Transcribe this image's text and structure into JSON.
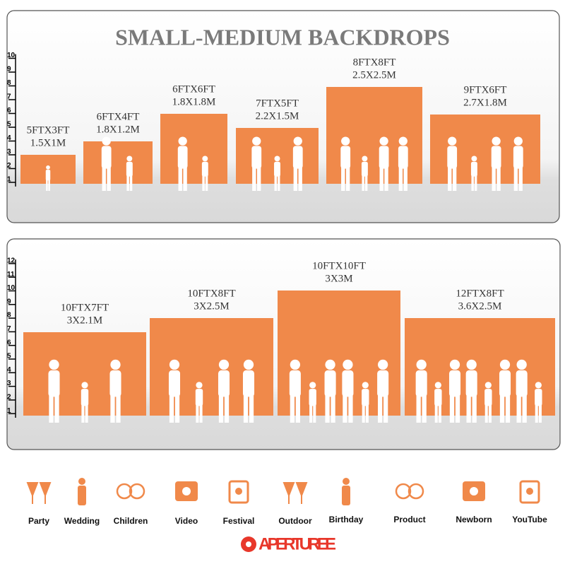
{
  "title": "SMALL-MEDIUM BACKDROPS",
  "panels": [
    {
      "ruler": [
        1,
        2,
        3,
        4,
        5,
        6,
        7,
        8,
        9,
        10
      ],
      "backdrops": [
        {
          "size_ft": "5FTX3FT",
          "size_m": "1.5X1M"
        },
        {
          "size_ft": "6FTX4FT",
          "size_m": "1.8X1.2M"
        },
        {
          "size_ft": "6FTX6FT",
          "size_m": "1.8X1.8M"
        },
        {
          "size_ft": "7FTX5FT",
          "size_m": "2.2X1.5M"
        },
        {
          "size_ft": "8FTX8FT",
          "size_m": "2.5X2.5M"
        },
        {
          "size_ft": "9FTX6FT",
          "size_m": "2.7X1.8M"
        }
      ]
    },
    {
      "ruler": [
        1,
        2,
        3,
        4,
        5,
        6,
        7,
        8,
        9,
        10,
        11,
        12
      ],
      "backdrops": [
        {
          "size_ft": "10FTX7FT",
          "size_m": "3X2.1M"
        },
        {
          "size_ft": "10FTX8FT",
          "size_m": "3X2.5M"
        },
        {
          "size_ft": "10FTX10FT",
          "size_m": "3X3M"
        },
        {
          "size_ft": "12FTX8FT",
          "size_m": "3.6X2.5M"
        }
      ]
    }
  ],
  "uses": [
    "Party",
    "Wedding",
    "Children",
    "Video",
    "Festival",
    "Outdoor",
    "Birthday",
    "Product",
    "Newborn",
    "YouTube"
  ],
  "brand": "APERTUREE"
}
